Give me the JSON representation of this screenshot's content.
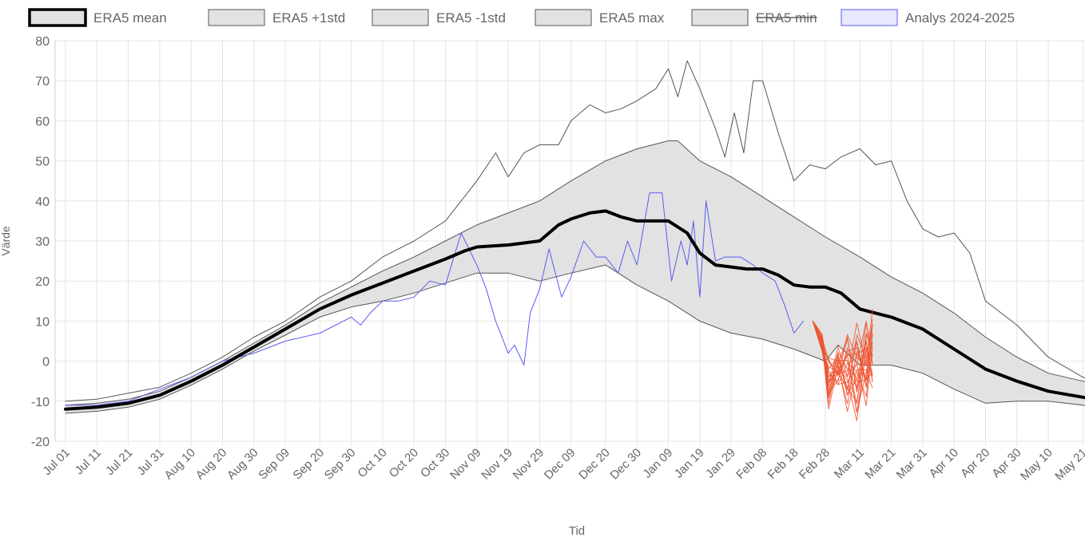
{
  "chart_data": {
    "type": "line",
    "title": "",
    "xlabel": "Tid",
    "ylabel": "Värde",
    "ylim": [
      -20,
      80
    ],
    "yticks": [
      80,
      70,
      60,
      50,
      40,
      30,
      20,
      10,
      0,
      -10,
      -20
    ],
    "xticks": [
      "Jul 01",
      "Jul 11",
      "Jul 21",
      "Jul 31",
      "Aug 10",
      "Aug 20",
      "Aug 30",
      "Sep 09",
      "Sep 20",
      "Sep 30",
      "Oct 10",
      "Oct 20",
      "Oct 30",
      "Nov 09",
      "Nov 19",
      "Nov 29",
      "Dec 09",
      "Dec 20",
      "Dec 30",
      "Jan 09",
      "Jan 19",
      "Jan 29",
      "Feb 08",
      "Feb 18",
      "Feb 28",
      "Mar 11",
      "Mar 21",
      "Mar 31",
      "Apr 10",
      "Apr 20",
      "Apr 30",
      "May 10",
      "May 21"
    ],
    "grid": true,
    "legend_position": "top",
    "series": [
      {
        "name": "ERA5 mean",
        "color": "#000000",
        "width": 4,
        "x": [
          "Jul 01",
          "Jul 11",
          "Jul 21",
          "Jul 31",
          "Aug 10",
          "Aug 20",
          "Aug 30",
          "Sep 09",
          "Sep 20",
          "Sep 30",
          "Oct 10",
          "Oct 20",
          "Oct 30",
          "Nov 05",
          "Nov 09",
          "Nov 19",
          "Nov 29",
          "Dec 05",
          "Dec 09",
          "Dec 15",
          "Dec 20",
          "Dec 25",
          "Dec 30",
          "Jan 05",
          "Jan 09",
          "Jan 15",
          "Jan 19",
          "Jan 24",
          "Jan 29",
          "Feb 03",
          "Feb 08",
          "Feb 13",
          "Feb 18",
          "Feb 23",
          "Feb 28",
          "Mar 05",
          "Mar 11",
          "Mar 16",
          "Mar 21",
          "Mar 31",
          "Apr 10",
          "Apr 20",
          "Apr 30",
          "May 10",
          "May 21",
          "May 29"
        ],
        "values": [
          -12,
          -11.5,
          -10.5,
          -8.5,
          -5,
          -1,
          3.5,
          8,
          13,
          16.5,
          19.5,
          22.5,
          25.5,
          27.5,
          28.5,
          29,
          30,
          34,
          35.5,
          37,
          37.5,
          36,
          35,
          35,
          35,
          32,
          27,
          24,
          23.5,
          23,
          23,
          21.5,
          19,
          18.5,
          18.5,
          17,
          13,
          12,
          11,
          8,
          3,
          -2,
          -5,
          -7.5,
          -9,
          -10
        ]
      },
      {
        "name": "ERA5 +1std",
        "color": "#555555",
        "width": 1,
        "x": [
          "Jul 01",
          "Jul 11",
          "Jul 21",
          "Jul 31",
          "Aug 10",
          "Aug 20",
          "Aug 30",
          "Sep 09",
          "Sep 20",
          "Sep 30",
          "Oct 10",
          "Oct 20",
          "Oct 30",
          "Nov 09",
          "Nov 19",
          "Nov 29",
          "Dec 09",
          "Dec 20",
          "Dec 30",
          "Jan 09",
          "Jan 12",
          "Jan 19",
          "Jan 29",
          "Feb 08",
          "Feb 18",
          "Feb 28",
          "Mar 11",
          "Mar 21",
          "Mar 31",
          "Apr 10",
          "Apr 20",
          "Apr 30",
          "May 10",
          "May 21",
          "May 29"
        ],
        "values": [
          -11,
          -10.5,
          -9.5,
          -7.5,
          -4,
          0,
          4.5,
          9,
          14.5,
          18.5,
          22.5,
          26,
          30,
          34,
          37,
          40,
          45,
          50,
          53,
          55,
          55,
          50,
          46,
          41,
          36,
          31,
          26,
          21,
          17,
          12,
          6,
          1,
          -3,
          -5,
          -6.5
        ]
      },
      {
        "name": "ERA5 -1std",
        "color": "#555555",
        "width": 1,
        "x": [
          "Jul 01",
          "Jul 11",
          "Jul 21",
          "Jul 31",
          "Aug 10",
          "Aug 20",
          "Aug 30",
          "Sep 09",
          "Sep 20",
          "Sep 30",
          "Oct 10",
          "Oct 20",
          "Oct 30",
          "Nov 09",
          "Nov 19",
          "Nov 29",
          "Dec 09",
          "Dec 20",
          "Dec 30",
          "Jan 09",
          "Jan 19",
          "Jan 29",
          "Feb 08",
          "Feb 18",
          "Feb 28",
          "Mar 04",
          "Mar 11",
          "Mar 21",
          "Mar 31",
          "Apr 10",
          "Apr 20",
          "Apr 30",
          "May 10",
          "May 21",
          "May 29"
        ],
        "values": [
          -13,
          -12.5,
          -11.5,
          -9.5,
          -6,
          -2,
          2.5,
          6.5,
          11,
          13.5,
          15,
          17,
          19.5,
          22,
          22,
          20,
          22,
          24,
          19,
          15,
          10,
          7,
          5.5,
          3,
          0,
          4,
          -1,
          -1,
          -3,
          -7,
          -10.5,
          -10,
          -10,
          -11,
          -12
        ]
      },
      {
        "name": "ERA5 max",
        "color": "#555555",
        "width": 1,
        "x": [
          "Jul 01",
          "Jul 11",
          "Jul 21",
          "Jul 31",
          "Aug 10",
          "Aug 20",
          "Aug 30",
          "Sep 09",
          "Sep 20",
          "Sep 30",
          "Oct 10",
          "Oct 20",
          "Oct 30",
          "Nov 05",
          "Nov 09",
          "Nov 15",
          "Nov 19",
          "Nov 24",
          "Nov 29",
          "Dec 05",
          "Dec 09",
          "Dec 15",
          "Dec 20",
          "Dec 25",
          "Dec 30",
          "Jan 05",
          "Jan 09",
          "Jan 12",
          "Jan 15",
          "Jan 19",
          "Jan 24",
          "Jan 27",
          "Jan 30",
          "Feb 02",
          "Feb 05",
          "Feb 08",
          "Feb 13",
          "Feb 18",
          "Feb 23",
          "Feb 28",
          "Mar 05",
          "Mar 11",
          "Mar 16",
          "Mar 21",
          "Mar 26",
          "Mar 31",
          "Apr 05",
          "Apr 10",
          "Apr 15",
          "Apr 20",
          "Apr 30",
          "May 10",
          "May 21",
          "May 29"
        ],
        "values": [
          -10,
          -9.5,
          -8,
          -6.5,
          -3,
          1,
          6,
          10,
          16,
          20,
          26,
          30,
          35,
          41,
          45,
          52,
          46,
          52,
          54,
          54,
          60,
          64,
          62,
          63,
          65,
          68,
          73,
          66,
          75,
          68,
          58,
          51,
          62,
          52,
          70,
          70,
          57,
          45,
          49,
          48,
          51,
          53,
          49,
          50,
          40,
          33,
          31,
          32,
          27,
          15,
          9,
          1,
          -4,
          -6
        ]
      },
      {
        "name": "ERA5 min",
        "color": "#555555",
        "width": 1,
        "hidden": true,
        "x": [],
        "values": []
      },
      {
        "name": "Analys 2024-2025",
        "color": "#5b5bf2",
        "width": 1,
        "x": [
          "Jul 01",
          "Jul 11",
          "Jul 21",
          "Jul 31",
          "Aug 10",
          "Aug 20",
          "Aug 30",
          "Sep 09",
          "Sep 20",
          "Sep 30",
          "Oct 03",
          "Oct 06",
          "Oct 10",
          "Oct 15",
          "Oct 20",
          "Oct 25",
          "Oct 30",
          "Nov 04",
          "Nov 09",
          "Nov 12",
          "Nov 15",
          "Nov 19",
          "Nov 21",
          "Nov 24",
          "Nov 26",
          "Nov 29",
          "Dec 02",
          "Dec 06",
          "Dec 09",
          "Dec 13",
          "Dec 17",
          "Dec 20",
          "Dec 24",
          "Dec 27",
          "Dec 30",
          "Jan 03",
          "Jan 07",
          "Jan 10",
          "Jan 13",
          "Jan 15",
          "Jan 17",
          "Jan 19",
          "Jan 21",
          "Jan 24",
          "Jan 27",
          "Jan 29",
          "Feb 01",
          "Feb 05",
          "Feb 08",
          "Feb 12",
          "Feb 15",
          "Feb 18",
          "Feb 21"
        ],
        "values": [
          -11,
          -11,
          -10,
          -7,
          -4,
          0,
          2,
          5,
          7,
          11,
          9,
          12,
          15,
          15,
          16,
          20,
          19,
          32,
          24,
          18,
          10,
          2,
          4,
          -1,
          12,
          18,
          28,
          16,
          21,
          30,
          26,
          26,
          22,
          30,
          24,
          42,
          42,
          20,
          30,
          24,
          35,
          16,
          40,
          25,
          26,
          26,
          26,
          24,
          22,
          20,
          14,
          7,
          10
        ]
      },
      {
        "name": "",
        "color": "#ee5533",
        "width": 1,
        "ensemble": true,
        "x": [
          "Feb 24",
          "Feb 27",
          "Mar 01",
          "Mar 04",
          "Mar 07",
          "Mar 10",
          "Mar 13",
          "Mar 15"
        ],
        "ensemble_min": [
          10,
          2,
          -12,
          -7,
          -13,
          -16,
          -12,
          -8
        ],
        "ensemble_max": [
          10,
          7,
          2,
          4,
          8,
          10,
          12,
          13
        ]
      }
    ]
  }
}
